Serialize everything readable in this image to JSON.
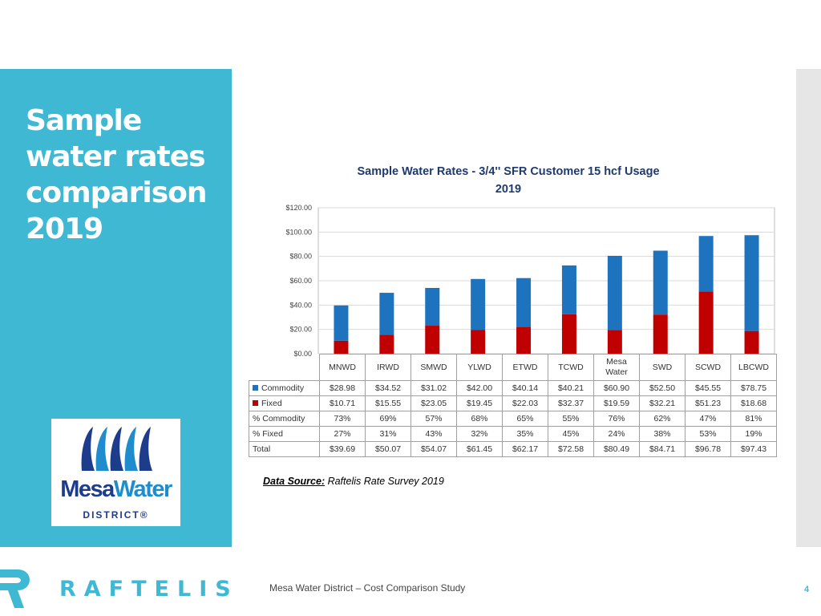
{
  "slide": {
    "title_lines": [
      "Sample",
      "water rates",
      "comparison",
      "2019"
    ],
    "colors": {
      "panel": "#3fb8d4",
      "commodity": "#1e73be",
      "fixed": "#c00000"
    }
  },
  "logo": {
    "word1": "Mesa",
    "word2": "Water",
    "district": "DISTRICT",
    "registered": "®"
  },
  "chart_data": {
    "type": "bar",
    "stacked": true,
    "title": "Sample Water Rates - 3/4'' SFR Customer 15 hcf Usage",
    "subtitle": "2019",
    "categories": [
      "MNWD",
      "IRWD",
      "SMWD",
      "YLWD",
      "ETWD",
      "TCWD",
      "Mesa Water",
      "SWD",
      "SCWD",
      "LBCWD"
    ],
    "series": [
      {
        "name": "Commodity",
        "color": "#1e73be",
        "display": [
          "$28.98",
          "$34.52",
          "$31.02",
          "$42.00",
          "$40.14",
          "$40.21",
          "$60.90",
          "$52.50",
          "$45.55",
          "$78.75"
        ],
        "values": [
          28.98,
          34.52,
          31.02,
          42.0,
          40.14,
          40.21,
          60.9,
          52.5,
          45.55,
          78.75
        ]
      },
      {
        "name": "Fixed",
        "color": "#c00000",
        "display": [
          "$10.71",
          "$15.55",
          "$23.05",
          "$19.45",
          "$22.03",
          "$32.37",
          "$19.59",
          "$32.21",
          "$51.23",
          "$18.68"
        ],
        "values": [
          10.71,
          15.55,
          23.05,
          19.45,
          22.03,
          32.37,
          19.59,
          32.21,
          51.23,
          18.68
        ]
      }
    ],
    "table_rows": [
      {
        "label": "% Commodity",
        "values": [
          "73%",
          "69%",
          "57%",
          "68%",
          "65%",
          "55%",
          "76%",
          "62%",
          "47%",
          "81%"
        ]
      },
      {
        "label": "% Fixed",
        "values": [
          "27%",
          "31%",
          "43%",
          "32%",
          "35%",
          "45%",
          "24%",
          "38%",
          "53%",
          "19%"
        ]
      },
      {
        "label": "Total",
        "values": [
          "$39.69",
          "$50.07",
          "$54.07",
          "$61.45",
          "$62.17",
          "$72.58",
          "$80.49",
          "$84.71",
          "$96.78",
          "$97.43"
        ]
      }
    ],
    "y_ticks": [
      "$0.00",
      "$20.00",
      "$40.00",
      "$60.00",
      "$80.00",
      "$100.00",
      "$120.00"
    ],
    "ylim": [
      0,
      120
    ],
    "grid": true,
    "legend": "table"
  },
  "source": {
    "label": "Data Source:",
    "text": " Raftelis Rate Survey 2019"
  },
  "footer": {
    "brand": "RAFTELIS",
    "text": "Mesa Water District – Cost Comparison Study",
    "page": "4"
  }
}
